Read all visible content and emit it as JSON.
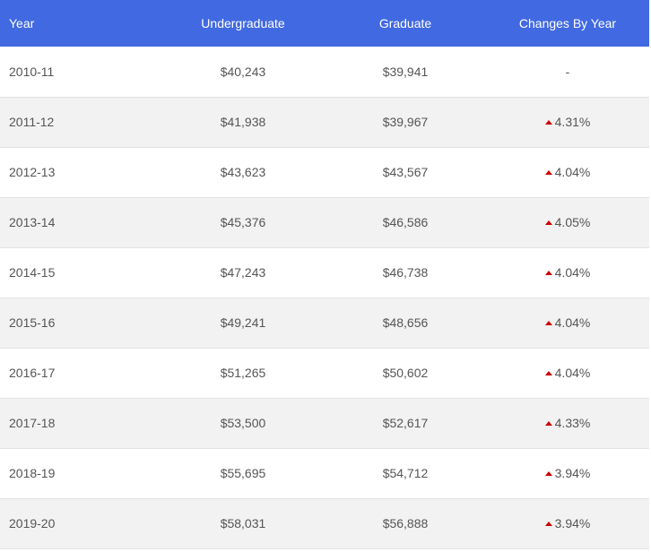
{
  "table": {
    "headers": {
      "year": "Year",
      "undergraduate": "Undergraduate",
      "graduate": "Graduate",
      "change": "Changes By Year"
    },
    "change_up_color": "#cc0000",
    "header_color": "#4169e1",
    "rows": [
      {
        "year": "2010-11",
        "undergraduate": "$40,243",
        "graduate": "$39,941",
        "change": "-",
        "trend": "none"
      },
      {
        "year": "2011-12",
        "undergraduate": "$41,938",
        "graduate": "$39,967",
        "change": "4.31%",
        "trend": "up"
      },
      {
        "year": "2012-13",
        "undergraduate": "$43,623",
        "graduate": "$43,567",
        "change": "4.04%",
        "trend": "up"
      },
      {
        "year": "2013-14",
        "undergraduate": "$45,376",
        "graduate": "$46,586",
        "change": "4.05%",
        "trend": "up"
      },
      {
        "year": "2014-15",
        "undergraduate": "$47,243",
        "graduate": "$46,738",
        "change": "4.04%",
        "trend": "up"
      },
      {
        "year": "2015-16",
        "undergraduate": "$49,241",
        "graduate": "$48,656",
        "change": "4.04%",
        "trend": "up"
      },
      {
        "year": "2016-17",
        "undergraduate": "$51,265",
        "graduate": "$50,602",
        "change": "4.04%",
        "trend": "up"
      },
      {
        "year": "2017-18",
        "undergraduate": "$53,500",
        "graduate": "$52,617",
        "change": "4.33%",
        "trend": "up"
      },
      {
        "year": "2018-19",
        "undergraduate": "$55,695",
        "graduate": "$54,712",
        "change": "3.94%",
        "trend": "up"
      },
      {
        "year": "2019-20",
        "undergraduate": "$58,031",
        "graduate": "$56,888",
        "change": "3.94%",
        "trend": "up"
      }
    ]
  }
}
